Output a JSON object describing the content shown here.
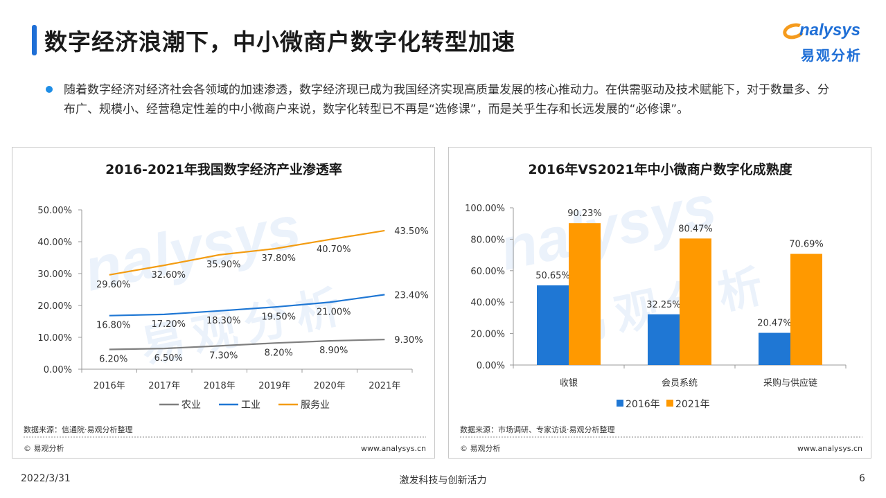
{
  "header": {
    "title": "数字经济浪潮下，中小微商户数字化转型加速",
    "logo_word": "nalysys",
    "logo_cn": "易观分析"
  },
  "intro": {
    "text": "随着数字经济对经济社会各领域的加速渗透，数字经济现已成为我国经济实现高质量发展的核心推动力。在供需驱动及技术赋能下，对于数量多、分布广、规模小、经营稳定性差的中小微商户来说，数字化转型已不再是“选修课”，而是关乎生存和长远发展的“必修课”。"
  },
  "colors": {
    "accent": "#1f6fd6",
    "orange": "#f59b1d",
    "agri": "#7f7f7f",
    "industry": "#1f77d4",
    "service": "#f39c12",
    "bar2016": "#1f77d4",
    "bar2021": "#ff9900"
  },
  "left_panel": {
    "source": "数据来源：信通院·易观分析整理",
    "copyright": "© 易观分析",
    "url": "www.analysys.cn"
  },
  "right_panel": {
    "source": "数据来源：市场调研、专家访谈·易观分析整理",
    "copyright": "© 易观分析",
    "url": "www.analysys.cn"
  },
  "footer": {
    "date": "2022/3/31",
    "slogan": "激发科技与创新活力",
    "page": "6"
  },
  "watermark": {
    "word": "nalysys",
    "cn": "易观分析"
  },
  "chart_data": [
    {
      "type": "line",
      "title": "2016-2021年我国数字经济产业渗透率",
      "categories": [
        "2016年",
        "2017年",
        "2018年",
        "2019年",
        "2020年",
        "2021年"
      ],
      "ylim": [
        0,
        50
      ],
      "yticks": [
        "0.00%",
        "10.00%",
        "20.00%",
        "30.00%",
        "40.00%",
        "50.00%"
      ],
      "grid": false,
      "legend": "bottom",
      "series": [
        {
          "name": "农业",
          "values": [
            6.2,
            6.5,
            7.3,
            8.2,
            8.9,
            9.3
          ],
          "labels": [
            "6.20%",
            "6.50%",
            "7.30%",
            "8.20%",
            "8.90%",
            "9.30%"
          ]
        },
        {
          "name": "工业",
          "values": [
            16.8,
            17.2,
            18.3,
            19.5,
            21.0,
            23.4
          ],
          "labels": [
            "16.80%",
            "17.20%",
            "18.30%",
            "19.50%",
            "21.00%",
            "23.40%"
          ]
        },
        {
          "name": "服务业",
          "values": [
            29.6,
            32.6,
            35.9,
            37.8,
            40.7,
            43.5
          ],
          "labels": [
            "29.60%",
            "32.60%",
            "35.90%",
            "37.80%",
            "40.70%",
            "43.50%"
          ]
        }
      ]
    },
    {
      "type": "bar",
      "title": "2016年VS2021年中小微商户数字化成熟度",
      "categories": [
        "收银",
        "会员系统",
        "采购与供应链"
      ],
      "ylim": [
        0,
        100
      ],
      "yticks": [
        "0.00%",
        "20.00%",
        "40.00%",
        "60.00%",
        "80.00%",
        "100.00%"
      ],
      "grid": false,
      "legend": "bottom",
      "series": [
        {
          "name": "2016年",
          "values": [
            50.65,
            32.25,
            20.47
          ],
          "labels": [
            "50.65%",
            "32.25%",
            "20.47%"
          ]
        },
        {
          "name": "2021年",
          "values": [
            90.23,
            80.47,
            70.69
          ],
          "labels": [
            "90.23%",
            "80.47%",
            "70.69%"
          ]
        }
      ]
    }
  ]
}
